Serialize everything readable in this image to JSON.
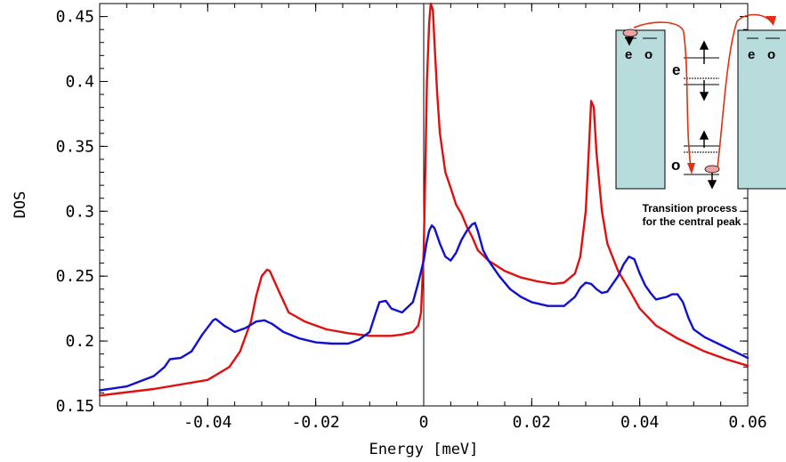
{
  "chart_data": {
    "type": "line",
    "xlabel": "Energy [meV]",
    "ylabel": "DOS",
    "xlim": [
      -0.06,
      0.06
    ],
    "ylim": [
      0.15,
      0.46
    ],
    "x_ticks": [
      -0.04,
      -0.02,
      0,
      0.02,
      0.04,
      0.06
    ],
    "x_tick_labels": [
      "-0.04",
      "-0.02",
      "0",
      "0.02",
      "0.04",
      "0.06"
    ],
    "y_ticks": [
      0.15,
      0.2,
      0.25,
      0.3,
      0.35,
      0.4,
      0.45
    ],
    "y_tick_labels": [
      "0.15",
      "0.2",
      "0.25",
      "0.3",
      "0.35",
      "0.4",
      "0.45"
    ],
    "vertical_line_x": 0,
    "grid": false,
    "series": [
      {
        "color": "#e01010",
        "x": [
          -0.06,
          -0.05,
          -0.04,
          -0.036,
          -0.034,
          -0.032,
          -0.031,
          -0.03,
          -0.029,
          -0.0285,
          -0.027,
          -0.025,
          -0.022,
          -0.018,
          -0.014,
          -0.01,
          -0.006,
          -0.004,
          -0.002,
          -0.001,
          -0.0005,
          0.0,
          0.0003,
          0.0006,
          0.001,
          0.0013,
          0.0017,
          0.002,
          0.0025,
          0.003,
          0.004,
          0.005,
          0.006,
          0.007,
          0.008,
          0.009,
          0.01,
          0.012,
          0.015,
          0.018,
          0.021,
          0.024,
          0.026,
          0.028,
          0.029,
          0.03,
          0.0305,
          0.031,
          0.0315,
          0.032,
          0.033,
          0.034,
          0.036,
          0.038,
          0.04,
          0.043,
          0.047,
          0.052,
          0.056,
          0.06
        ],
        "y": [
          0.158,
          0.163,
          0.17,
          0.18,
          0.192,
          0.215,
          0.235,
          0.25,
          0.255,
          0.254,
          0.24,
          0.222,
          0.215,
          0.209,
          0.206,
          0.204,
          0.204,
          0.205,
          0.207,
          0.212,
          0.222,
          0.27,
          0.33,
          0.4,
          0.445,
          0.46,
          0.455,
          0.43,
          0.39,
          0.36,
          0.33,
          0.318,
          0.305,
          0.298,
          0.288,
          0.28,
          0.27,
          0.262,
          0.254,
          0.249,
          0.246,
          0.244,
          0.245,
          0.252,
          0.265,
          0.3,
          0.34,
          0.385,
          0.38,
          0.345,
          0.3,
          0.275,
          0.254,
          0.24,
          0.225,
          0.212,
          0.202,
          0.192,
          0.186,
          0.181
        ]
      },
      {
        "color": "#1010d0",
        "x": [
          -0.06,
          -0.055,
          -0.05,
          -0.048,
          -0.047,
          -0.045,
          -0.043,
          -0.041,
          -0.039,
          -0.0385,
          -0.037,
          -0.035,
          -0.033,
          -0.031,
          -0.0295,
          -0.028,
          -0.026,
          -0.023,
          -0.02,
          -0.017,
          -0.014,
          -0.012,
          -0.01,
          -0.009,
          -0.0082,
          -0.007,
          -0.006,
          -0.004,
          -0.002,
          -0.001,
          0.0,
          0.0005,
          0.001,
          0.0015,
          0.002,
          0.003,
          0.004,
          0.005,
          0.006,
          0.007,
          0.008,
          0.009,
          0.0095,
          0.01,
          0.011,
          0.012,
          0.014,
          0.016,
          0.018,
          0.02,
          0.023,
          0.026,
          0.028,
          0.029,
          0.03,
          0.031,
          0.032,
          0.033,
          0.034,
          0.035,
          0.036,
          0.037,
          0.038,
          0.039,
          0.04,
          0.041,
          0.042,
          0.043,
          0.045,
          0.046,
          0.047,
          0.048,
          0.049,
          0.05,
          0.052,
          0.055,
          0.058,
          0.06
        ],
        "y": [
          0.162,
          0.165,
          0.173,
          0.18,
          0.186,
          0.187,
          0.192,
          0.205,
          0.216,
          0.217,
          0.212,
          0.207,
          0.21,
          0.215,
          0.216,
          0.213,
          0.207,
          0.202,
          0.199,
          0.198,
          0.198,
          0.201,
          0.207,
          0.22,
          0.23,
          0.231,
          0.225,
          0.222,
          0.23,
          0.245,
          0.262,
          0.275,
          0.285,
          0.289,
          0.287,
          0.275,
          0.265,
          0.262,
          0.268,
          0.278,
          0.285,
          0.29,
          0.291,
          0.285,
          0.27,
          0.262,
          0.25,
          0.24,
          0.234,
          0.23,
          0.227,
          0.227,
          0.234,
          0.241,
          0.245,
          0.244,
          0.24,
          0.237,
          0.238,
          0.244,
          0.25,
          0.259,
          0.265,
          0.263,
          0.252,
          0.243,
          0.237,
          0.232,
          0.234,
          0.236,
          0.236,
          0.23,
          0.218,
          0.209,
          0.203,
          0.197,
          0.191,
          0.187
        ]
      }
    ]
  },
  "inset": {
    "caption_line1": "Transition process",
    "caption_line2": "for the central peak",
    "level_label_e": "e",
    "level_label_o": "o",
    "left_lead_e": "e",
    "left_lead_o": "o",
    "right_lead_e": "e",
    "right_lead_o": "o",
    "lead_color": "#b8dcdc",
    "arrow_color": "#e03010",
    "electron_color": "#f0a0a0"
  }
}
